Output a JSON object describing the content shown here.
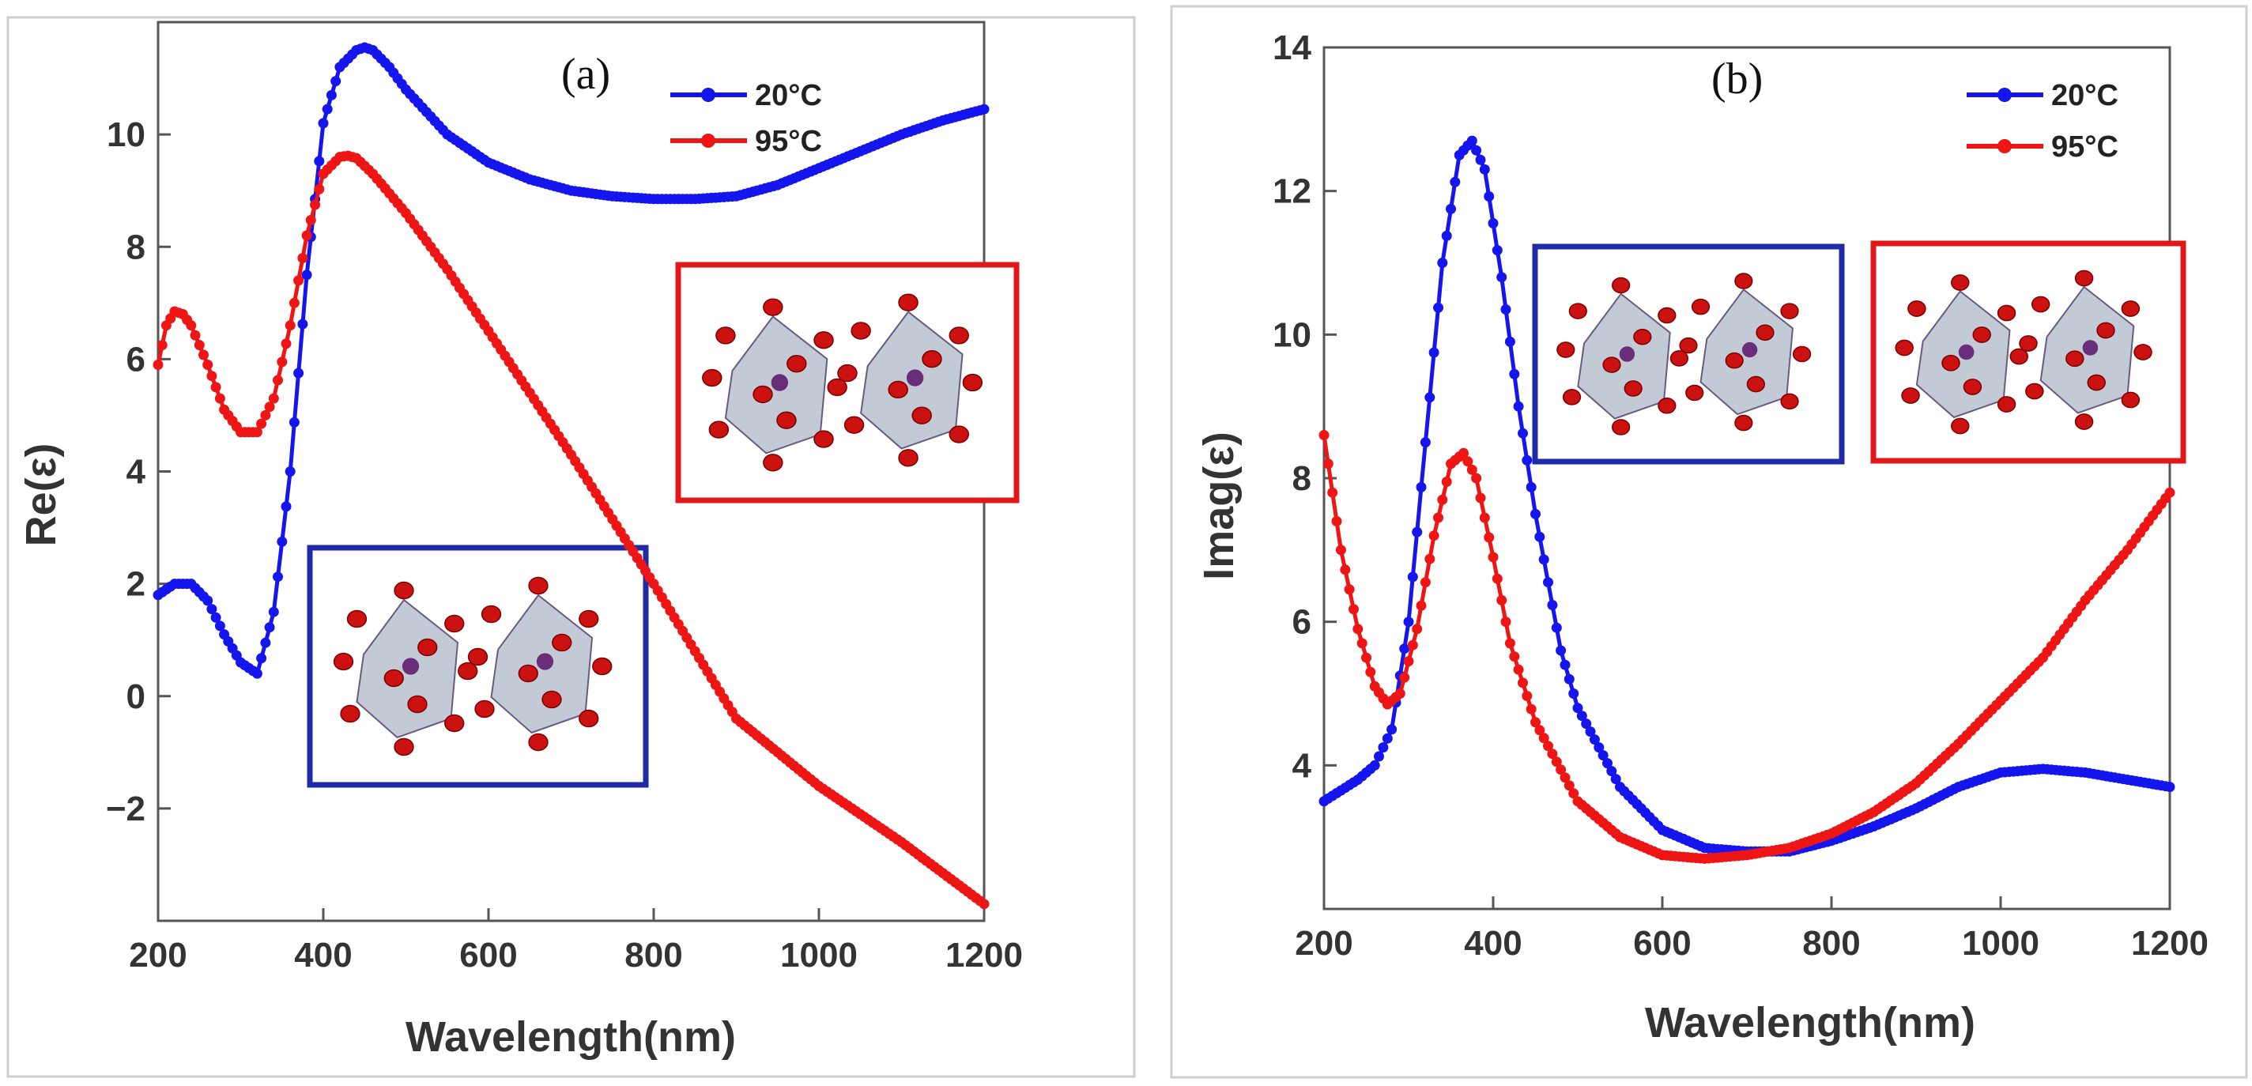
{
  "figure": {
    "panels": [
      {
        "label": "(a)",
        "ylabel": "Re(ε)"
      },
      {
        "label": "(b)",
        "ylabel": "Imag(ε)"
      }
    ]
  },
  "colors": {
    "series_20C": "#1515ee",
    "series_95C": "#ee1515",
    "axis": "#555555"
  },
  "chart_data": [
    {
      "type": "scatter",
      "title": "(a)",
      "xlabel": "Wavelength(nm)",
      "ylabel": "Re(ε)",
      "xlim": [
        200,
        1200
      ],
      "ylim": [
        -4,
        12
      ],
      "xticks": [
        200,
        400,
        600,
        800,
        1000,
        1200
      ],
      "yticks": [
        -2,
        0,
        2,
        4,
        6,
        8,
        10
      ],
      "ytick_labels": [
        "−2",
        "0",
        "2",
        "4",
        "6",
        "8",
        "10"
      ],
      "legend": "top-right",
      "series": [
        {
          "name": "20°C",
          "x": [
            200,
            220,
            240,
            260,
            280,
            300,
            320,
            340,
            360,
            380,
            400,
            420,
            440,
            450,
            460,
            480,
            500,
            550,
            600,
            650,
            700,
            750,
            800,
            850,
            900,
            950,
            1000,
            1050,
            1100,
            1150,
            1200
          ],
          "y": [
            1.8,
            2.0,
            2.0,
            1.7,
            1.1,
            0.6,
            0.4,
            1.5,
            4.0,
            7.5,
            10.2,
            11.2,
            11.5,
            11.55,
            11.5,
            11.2,
            10.8,
            10.0,
            9.5,
            9.2,
            9.0,
            8.9,
            8.85,
            8.85,
            8.9,
            9.1,
            9.4,
            9.7,
            10.0,
            10.25,
            10.45
          ]
        },
        {
          "name": "95°C",
          "x": [
            200,
            210,
            220,
            230,
            240,
            260,
            280,
            300,
            320,
            340,
            360,
            380,
            400,
            420,
            430,
            440,
            460,
            500,
            550,
            600,
            700,
            800,
            900,
            1000,
            1100,
            1200
          ],
          "y": [
            5.9,
            6.6,
            6.85,
            6.8,
            6.6,
            5.9,
            5.1,
            4.7,
            4.7,
            5.3,
            6.6,
            8.2,
            9.3,
            9.6,
            9.62,
            9.58,
            9.3,
            8.6,
            7.6,
            6.5,
            4.3,
            2.0,
            -0.4,
            -1.6,
            -2.6,
            -3.7
          ]
        }
      ],
      "inset_colors": [
        "blue",
        "red"
      ]
    },
    {
      "type": "scatter",
      "title": "(b)",
      "xlabel": "Wavelength(nm)",
      "ylabel": "Imag(ε)",
      "xlim": [
        200,
        1200
      ],
      "ylim": [
        2,
        14
      ],
      "xticks": [
        200,
        400,
        600,
        800,
        1000,
        1200
      ],
      "yticks": [
        4,
        6,
        8,
        10,
        12,
        14
      ],
      "ytick_labels": [
        "4",
        "6",
        "8",
        "10",
        "12",
        "14"
      ],
      "legend": "top-right",
      "series": [
        {
          "name": "20°C",
          "x": [
            200,
            220,
            240,
            260,
            280,
            300,
            320,
            340,
            360,
            375,
            390,
            410,
            430,
            450,
            480,
            500,
            550,
            600,
            650,
            700,
            750,
            800,
            850,
            900,
            950,
            1000,
            1050,
            1100,
            1150,
            1200
          ],
          "y": [
            3.5,
            3.65,
            3.8,
            4.0,
            4.5,
            6.0,
            8.5,
            11.0,
            12.5,
            12.7,
            12.3,
            10.8,
            9.0,
            7.5,
            5.6,
            4.8,
            3.7,
            3.1,
            2.85,
            2.8,
            2.8,
            2.95,
            3.15,
            3.4,
            3.7,
            3.9,
            3.95,
            3.9,
            3.8,
            3.7
          ]
        },
        {
          "name": "95°C",
          "x": [
            200,
            220,
            240,
            260,
            275,
            290,
            310,
            330,
            350,
            365,
            380,
            400,
            420,
            450,
            500,
            550,
            600,
            650,
            700,
            750,
            800,
            850,
            900,
            950,
            1000,
            1050,
            1100,
            1150,
            1200
          ],
          "y": [
            8.6,
            7.0,
            5.9,
            5.1,
            4.85,
            5.0,
            5.9,
            7.2,
            8.2,
            8.35,
            8.0,
            6.9,
            5.7,
            4.6,
            3.5,
            3.0,
            2.75,
            2.7,
            2.75,
            2.85,
            3.05,
            3.35,
            3.75,
            4.3,
            4.9,
            5.5,
            6.3,
            7.0,
            7.8
          ]
        }
      ],
      "inset_colors": [
        "blue",
        "red"
      ]
    }
  ]
}
